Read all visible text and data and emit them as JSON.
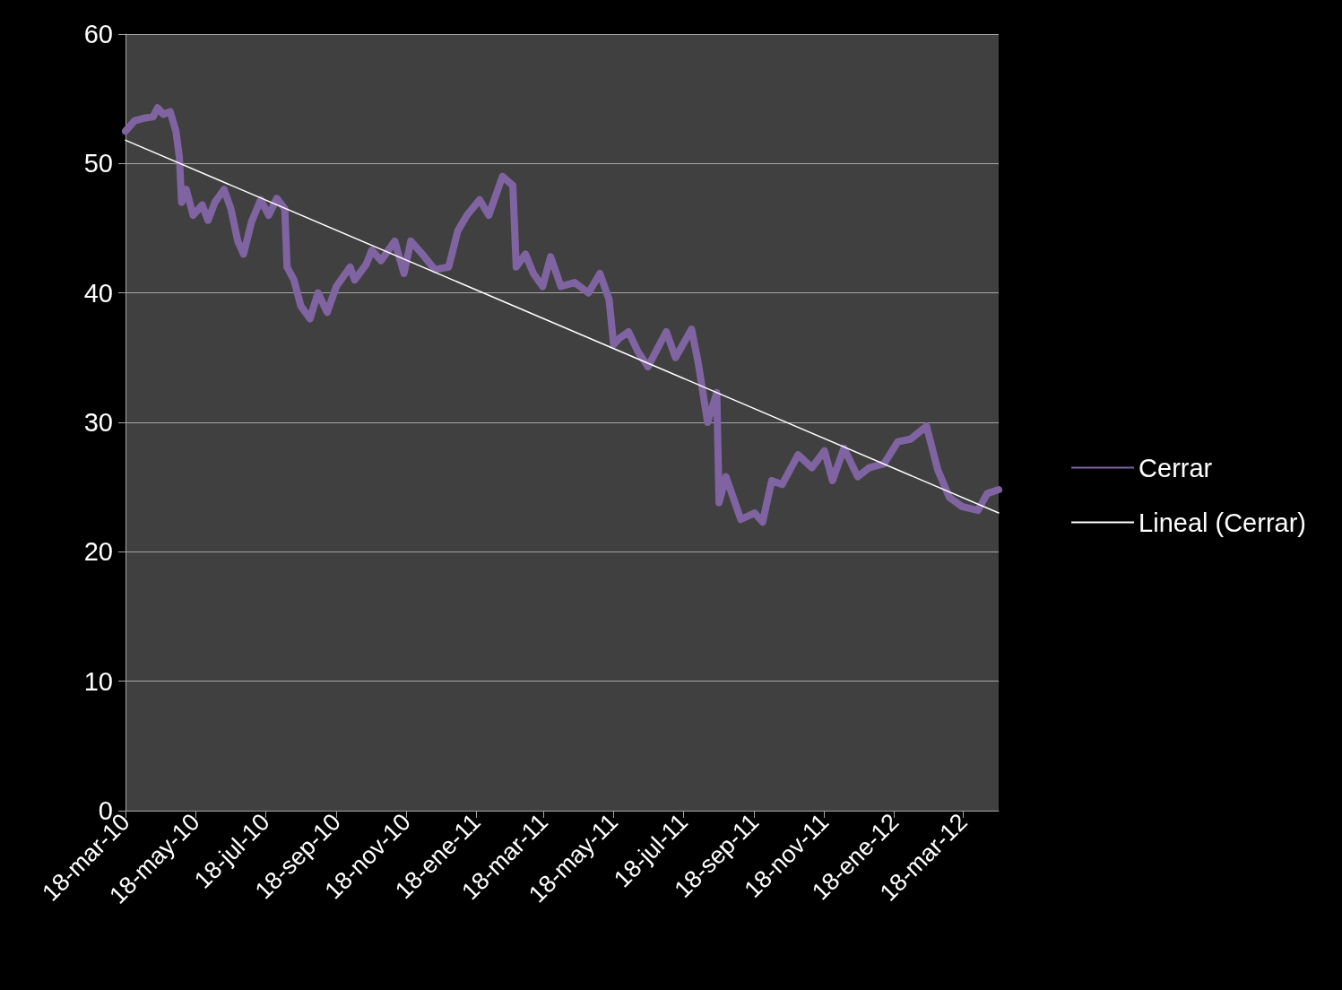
{
  "chart_data": {
    "type": "line",
    "x": [
      "2010-03-18",
      "2010-03-26",
      "2010-04-03",
      "2010-04-11",
      "2010-04-15",
      "2010-04-20",
      "2010-04-26",
      "2010-05-01",
      "2010-05-04",
      "2010-05-06",
      "2010-05-10",
      "2010-05-16",
      "2010-05-24",
      "2010-05-29",
      "2010-06-04",
      "2010-06-12",
      "2010-06-18",
      "2010-06-24",
      "2010-06-29",
      "2010-07-06",
      "2010-07-14",
      "2010-07-21",
      "2010-07-28",
      "2010-08-04",
      "2010-08-06",
      "2010-08-12",
      "2010-08-18",
      "2010-08-26",
      "2010-09-02",
      "2010-09-10",
      "2010-09-18",
      "2010-09-30",
      "2010-10-04",
      "2010-10-14",
      "2010-10-19",
      "2010-10-27",
      "2010-11-08",
      "2010-11-16",
      "2010-11-22",
      "2010-12-02",
      "2010-12-13",
      "2010-12-25",
      "2011-01-02",
      "2011-01-10",
      "2011-01-21",
      "2011-01-29",
      "2011-02-10",
      "2011-02-19",
      "2011-02-22",
      "2011-03-02",
      "2011-03-09",
      "2011-03-17",
      "2011-03-24",
      "2011-04-02",
      "2011-04-14",
      "2011-04-26",
      "2011-05-06",
      "2011-05-14",
      "2011-05-18",
      "2011-05-23",
      "2011-05-31",
      "2011-06-08",
      "2011-06-17",
      "2011-06-27",
      "2011-07-03",
      "2011-07-11",
      "2011-07-25",
      "2011-07-31",
      "2011-08-08",
      "2011-08-16",
      "2011-08-18",
      "2011-08-24",
      "2011-09-06",
      "2011-09-18",
      "2011-09-25",
      "2011-10-03",
      "2011-10-12",
      "2011-10-26",
      "2011-11-07",
      "2011-11-18",
      "2011-11-25",
      "2011-12-05",
      "2011-12-17",
      "2011-12-27",
      "2012-01-09",
      "2012-01-21",
      "2012-02-01",
      "2012-02-15",
      "2012-02-25",
      "2012-03-06",
      "2012-03-17",
      "2012-03-31",
      "2012-04-08",
      "2012-04-18"
    ],
    "series": [
      {
        "name": "Cerrar",
        "color": "#8064a2",
        "values": [
          52.5,
          53.3,
          53.5,
          53.6,
          54.3,
          53.8,
          54.0,
          52.5,
          50.5,
          47.0,
          48.0,
          46.0,
          46.8,
          45.6,
          47.0,
          48.0,
          46.5,
          44.0,
          43.0,
          45.5,
          47.2,
          46.0,
          47.3,
          46.5,
          42.0,
          41.0,
          39.0,
          38.0,
          40.0,
          38.5,
          40.5,
          42.0,
          41.0,
          42.2,
          43.3,
          42.5,
          44.0,
          41.5,
          44.0,
          43.0,
          41.8,
          42.0,
          44.8,
          46.0,
          47.2,
          46.0,
          49.0,
          48.3,
          42.0,
          43.0,
          41.5,
          40.5,
          42.8,
          40.5,
          40.8,
          40.0,
          41.5,
          39.5,
          36.0,
          36.5,
          37.0,
          35.5,
          34.3,
          36.0,
          37.0,
          35.0,
          37.2,
          34.5,
          30.0,
          32.3,
          23.8,
          25.8,
          22.5,
          23.0,
          22.3,
          25.5,
          25.2,
          27.5,
          26.5,
          27.8,
          25.5,
          28.0,
          25.8,
          26.5,
          26.8,
          28.5,
          28.7,
          29.7,
          26.3,
          24.2,
          23.5,
          23.2,
          24.5,
          24.8
        ]
      },
      {
        "name": "Lineal (Cerrar)",
        "type": "line",
        "color": "#ffffff",
        "x": [
          "2010-03-18",
          "2012-04-18"
        ],
        "values": [
          51.8,
          23.0
        ]
      }
    ],
    "xlim": [
      "2010-03-18",
      "2012-04-18"
    ],
    "xticks": [
      {
        "value": "2010-03-18",
        "label": "18-mar-10"
      },
      {
        "value": "2010-05-18",
        "label": "18-may-10"
      },
      {
        "value": "2010-07-18",
        "label": "18-jul-10"
      },
      {
        "value": "2010-09-18",
        "label": "18-sep-10"
      },
      {
        "value": "2010-11-18",
        "label": "18-nov-10"
      },
      {
        "value": "2011-01-18",
        "label": "18-ene-11"
      },
      {
        "value": "2011-03-18",
        "label": "18-mar-11"
      },
      {
        "value": "2011-05-18",
        "label": "18-may-11"
      },
      {
        "value": "2011-07-18",
        "label": "18-jul-11"
      },
      {
        "value": "2011-09-18",
        "label": "18-sep-11"
      },
      {
        "value": "2011-11-18",
        "label": "18-nov-11"
      },
      {
        "value": "2012-01-18",
        "label": "18-ene-12"
      },
      {
        "value": "2012-03-18",
        "label": "18-mar-12"
      }
    ],
    "ylim": [
      0,
      60
    ],
    "yticks": [
      0,
      10,
      20,
      30,
      40,
      50,
      60
    ],
    "grid": "y",
    "legend": "right",
    "marker": "none",
    "line_style": "solid"
  }
}
